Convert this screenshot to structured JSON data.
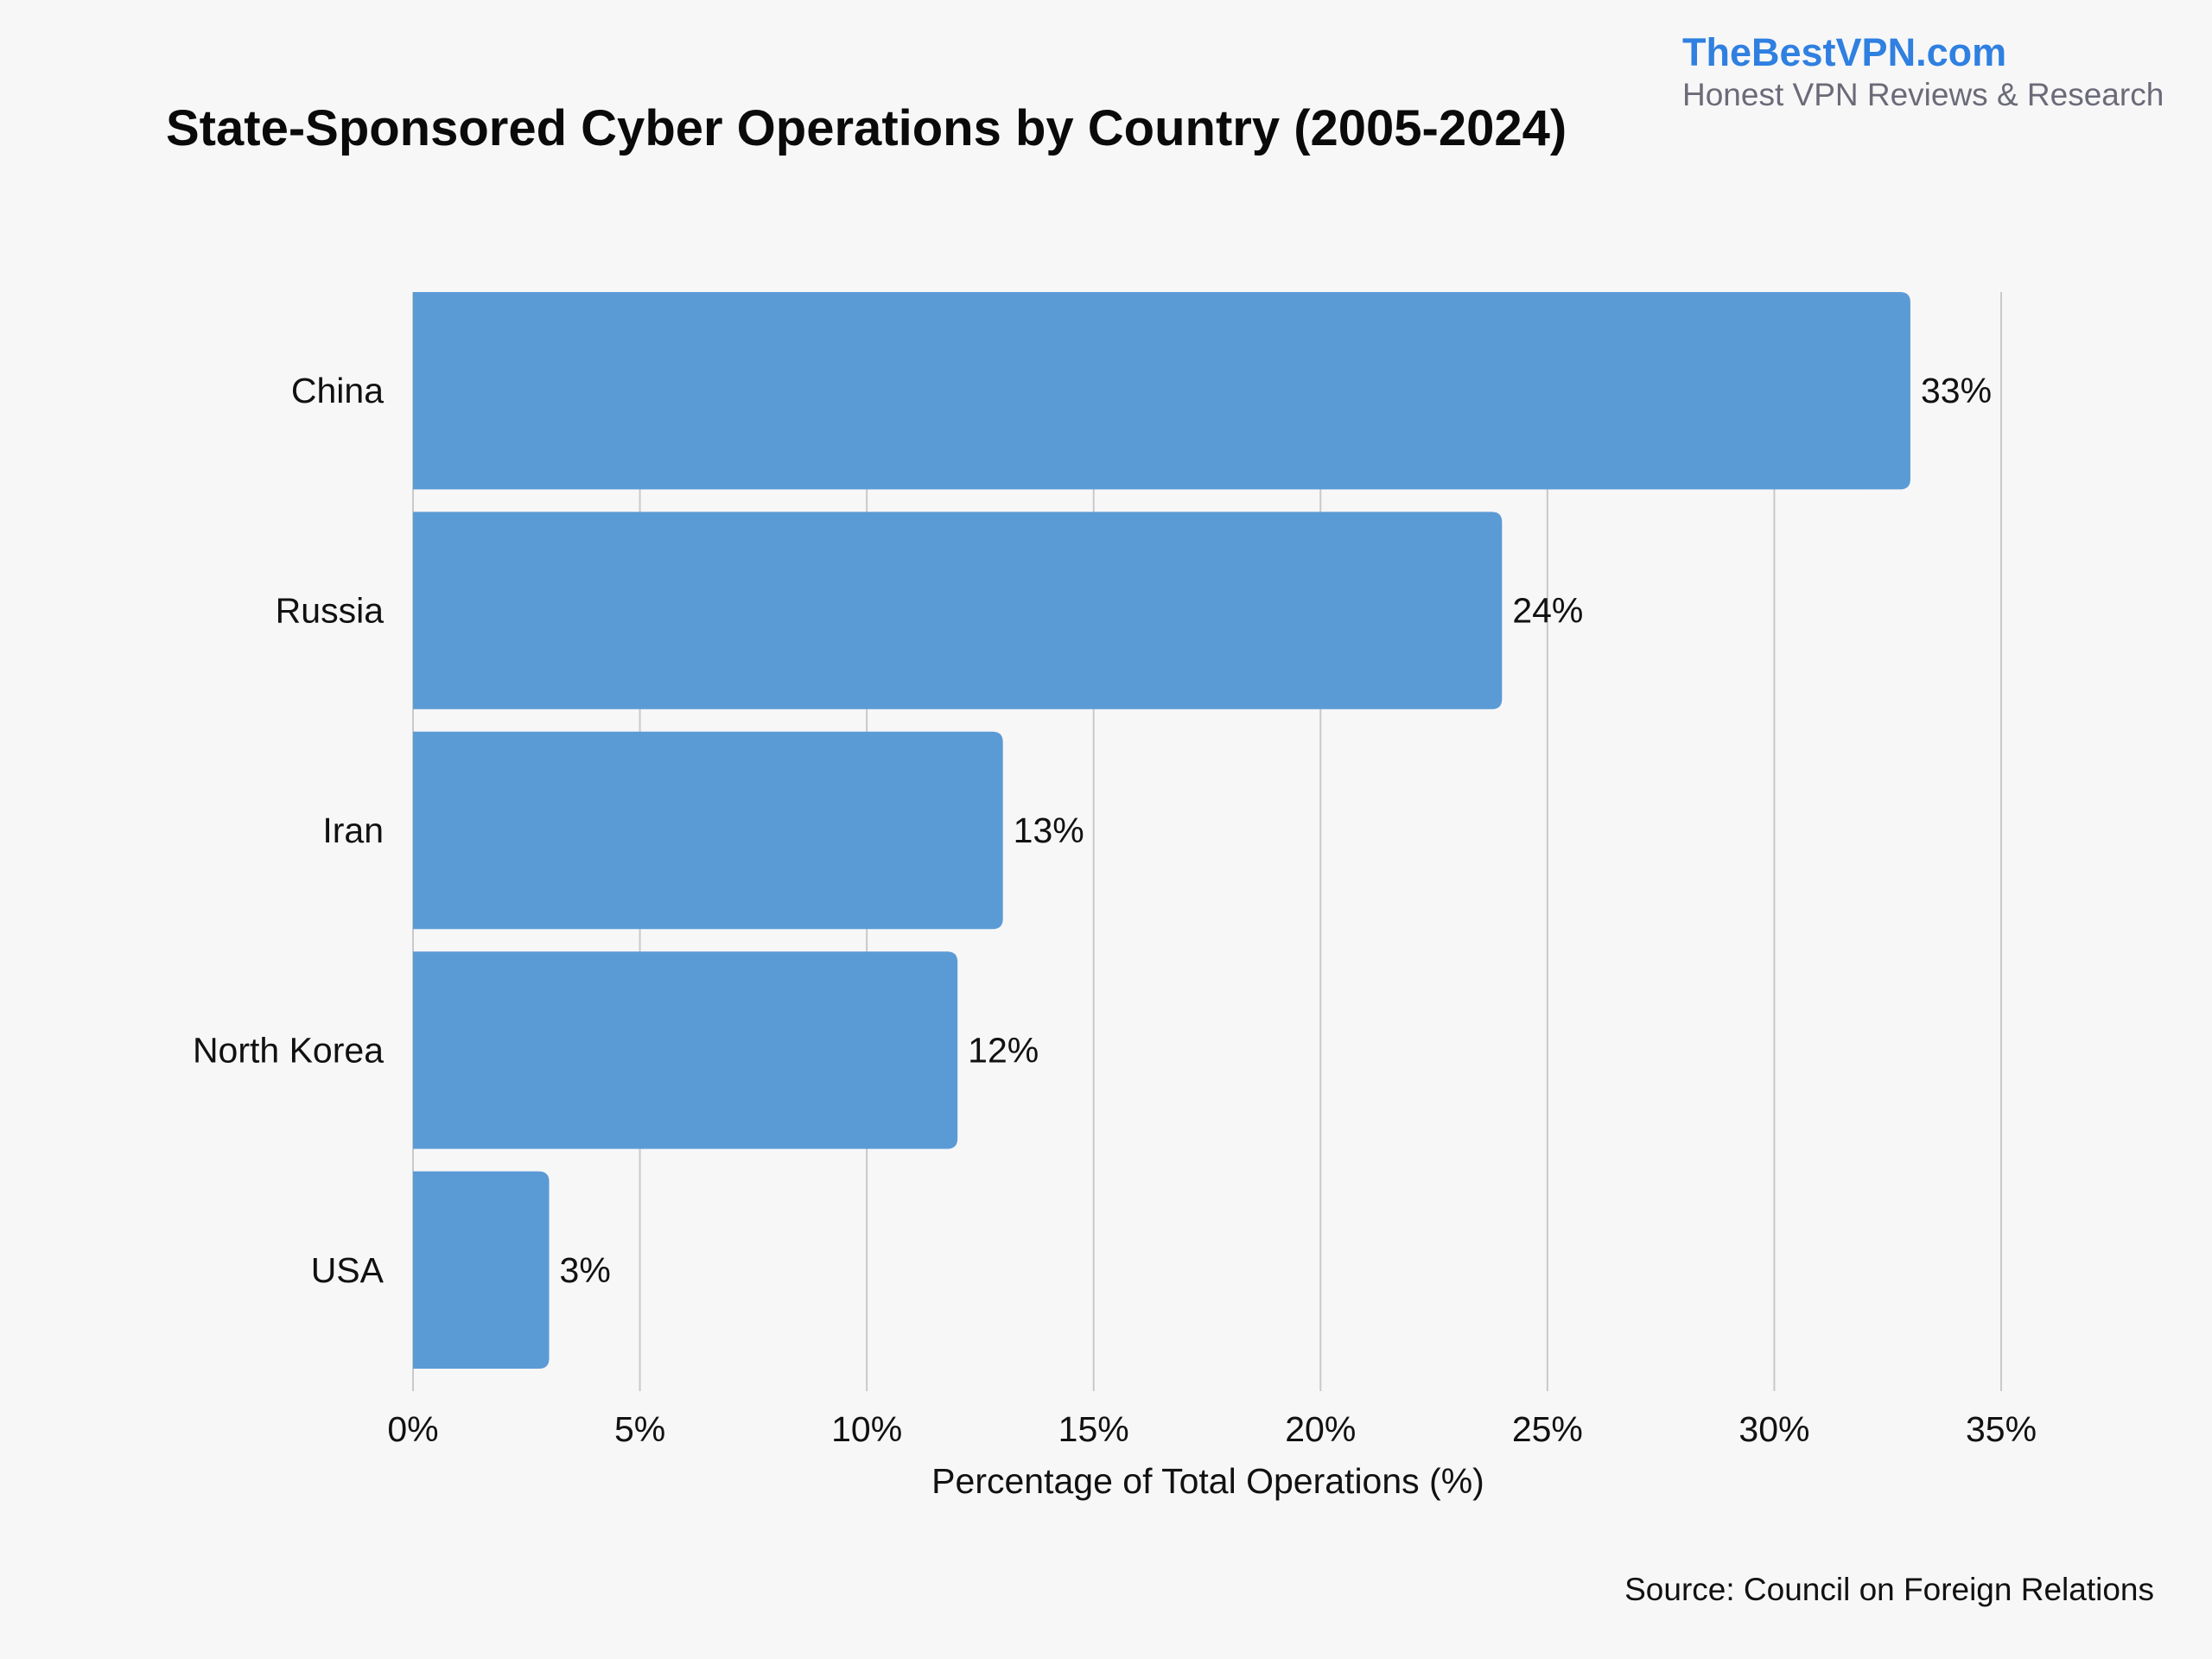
{
  "branding": {
    "site": "TheBestVPN.com",
    "tagline": "Honest VPN Reviews & Research",
    "brand_color": "#2f80e0"
  },
  "footer": {
    "source": "Source: Council on Foreign Relations"
  },
  "chart_data": {
    "type": "bar",
    "orientation": "horizontal",
    "title": "State-Sponsored Cyber Operations by Country (2005-2024)",
    "xlabel": "Percentage of Total Operations (%)",
    "ylabel": "",
    "categories": [
      "China",
      "Russia",
      "Iran",
      "North Korea",
      "USA"
    ],
    "values": [
      33,
      24,
      13,
      12,
      3
    ],
    "value_labels": [
      "33%",
      "24%",
      "13%",
      "12%",
      "3%"
    ],
    "xlim": [
      0,
      35
    ],
    "xticks": [
      0,
      5,
      10,
      15,
      20,
      25,
      30,
      35
    ],
    "xtick_labels": [
      "0%",
      "5%",
      "10%",
      "15%",
      "20%",
      "25%",
      "30%",
      "35%"
    ],
    "grid": "vertical",
    "bar_color": "#5b9bd5",
    "grid_color": "#c9c9c9"
  }
}
